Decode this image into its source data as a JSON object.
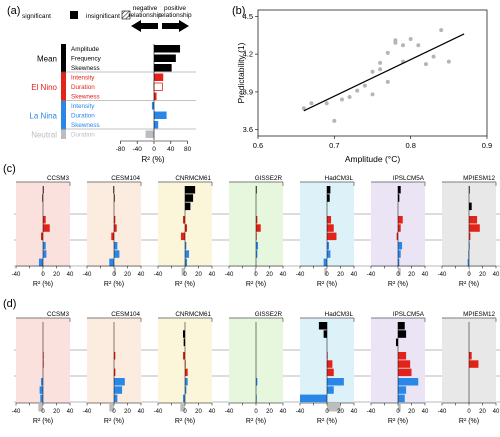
{
  "colors": {
    "mean": "#000000",
    "el_nino": "#e2231a",
    "la_nina": "#2a87e8",
    "neutral": "#bdbdbd"
  },
  "panel_a": {
    "label": "(a)",
    "legend": {
      "significant": "significant",
      "insignificant": "insignificant"
    },
    "direction": {
      "negative": "negative relationship",
      "positive": "positive relationship"
    },
    "groups": [
      {
        "name": "Mean",
        "color": "#000000",
        "metrics": [
          "Amplitude",
          "Frequency",
          "Skewness"
        ]
      },
      {
        "name": "El Nino",
        "color": "#e2231a",
        "metrics": [
          "Intensity",
          "Duration",
          "Skewness"
        ]
      },
      {
        "name": "La Nina",
        "color": "#2a87e8",
        "metrics": [
          "Intensity",
          "Duration",
          "Skewness"
        ]
      },
      {
        "name": "Neutral",
        "color": "#bdbdbd",
        "metrics": [
          "Duration"
        ]
      }
    ],
    "xlabel": "R² (%)",
    "ticks": [
      -80,
      -40,
      0,
      40,
      80
    ]
  },
  "panel_b": {
    "label": "(b)",
    "xlabel": "Amplitude (°C)",
    "ylabel": "Predictability (1)",
    "xticks": [
      0.6,
      0.7,
      0.8,
      0.9
    ],
    "yticks": [
      3.6,
      3.9,
      4.2,
      4.5
    ],
    "xlim": [
      0.6,
      0.9
    ],
    "ylim": [
      3.55,
      4.55
    ],
    "fit_line": [
      [
        0.66,
        3.75
      ],
      [
        0.87,
        4.36
      ]
    ],
    "points": [
      [
        0.66,
        3.77
      ],
      [
        0.67,
        3.81
      ],
      [
        0.69,
        3.81
      ],
      [
        0.7,
        3.67
      ],
      [
        0.71,
        3.84
      ],
      [
        0.72,
        3.86
      ],
      [
        0.73,
        3.91
      ],
      [
        0.74,
        3.95
      ],
      [
        0.75,
        3.88
      ],
      [
        0.75,
        4.06
      ],
      [
        0.76,
        4.08
      ],
      [
        0.76,
        4.13
      ],
      [
        0.77,
        3.98
      ],
      [
        0.77,
        4.21
      ],
      [
        0.78,
        4.31
      ],
      [
        0.78,
        4.29
      ],
      [
        0.79,
        4.27
      ],
      [
        0.79,
        4.14
      ],
      [
        0.8,
        4.32
      ],
      [
        0.81,
        4.27
      ],
      [
        0.82,
        4.12
      ],
      [
        0.83,
        4.18
      ],
      [
        0.84,
        4.39
      ],
      [
        0.85,
        4.14
      ]
    ]
  },
  "panel_c": {
    "label": "(c)"
  },
  "panel_d": {
    "label": "(d)"
  },
  "model_xlabel": "R² (%)",
  "model_ticks": [
    -40,
    -20,
    0,
    20,
    40
  ],
  "chart_data": [
    {
      "type": "bar",
      "panel": "(a)",
      "categories": [
        "Amplitude",
        "Frequency",
        "Skewness",
        "Intensity",
        "Duration",
        "Skewness",
        "Intensity",
        "Duration",
        "Skewness",
        "Duration"
      ],
      "values": [
        62,
        52,
        42,
        22,
        20,
        6,
        -5,
        30,
        10,
        -20
      ],
      "significant": [
        true,
        true,
        true,
        true,
        false,
        true,
        true,
        true,
        true,
        true
      ],
      "xlabel": "R² (%)",
      "xlim": [
        -100,
        100
      ]
    },
    {
      "type": "scatter",
      "panel": "(b)",
      "xlabel": "Amplitude (°C)",
      "ylabel": "Predictability (1)",
      "xlim": [
        0.6,
        0.9
      ],
      "ylim": [
        3.55,
        4.55
      ]
    },
    {
      "type": "bar",
      "panel": "(c)",
      "xlim": [
        -40,
        40
      ],
      "models": [
        {
          "name": "CCSM3",
          "bg": "#fbe1de",
          "values": [
            1,
            -1,
            0,
            4,
            10,
            -3,
            4,
            5,
            -6,
            -1
          ]
        },
        {
          "name": "CESM104",
          "bg": "#fcecdf",
          "values": [
            -1,
            1,
            0,
            2,
            4,
            -4,
            5,
            8,
            -7,
            3
          ]
        },
        {
          "name": "CNRMCM61",
          "bg": "#fbf6d9",
          "values": [
            15,
            12,
            8,
            -3,
            3,
            -6,
            2,
            6,
            3,
            -5
          ]
        },
        {
          "name": "GISSE2R",
          "bg": "#e7f7dd",
          "values": [
            1,
            0,
            0,
            2,
            7,
            1,
            3,
            2,
            0,
            -2
          ]
        },
        {
          "name": "HadCM3L",
          "bg": "#dcf1f8",
          "values": [
            5,
            4,
            0,
            6,
            10,
            14,
            3,
            5,
            -5,
            -4
          ]
        },
        {
          "name": "IPSLCM5A",
          "bg": "#ebe4f5",
          "values": [
            4,
            2,
            0,
            7,
            4,
            -2,
            6,
            4,
            2,
            4
          ]
        },
        {
          "name": "MPIESM12",
          "bg": "#e8e8e8",
          "values": [
            1,
            0,
            4,
            12,
            16,
            2,
            1,
            -1,
            -2,
            1
          ]
        }
      ]
    },
    {
      "type": "bar",
      "panel": "(d)",
      "xlim": [
        -40,
        40
      ],
      "models": [
        {
          "name": "CCSM3",
          "bg": "#fbe1de",
          "values": [
            0,
            0,
            0,
            1,
            1,
            0,
            -3,
            -5,
            -4,
            -7
          ]
        },
        {
          "name": "CESM104",
          "bg": "#fcecdf",
          "values": [
            0,
            0,
            0,
            2,
            0,
            2,
            16,
            12,
            5,
            -7
          ]
        },
        {
          "name": "CNRMCM61",
          "bg": "#fbf6d9",
          "values": [
            0,
            -3,
            -2,
            -3,
            1,
            4,
            4,
            2,
            -3,
            -7
          ]
        },
        {
          "name": "GISSE2R",
          "bg": "#e7f7dd",
          "values": [
            0,
            0,
            0,
            0,
            0,
            0,
            2,
            0,
            1,
            0
          ]
        },
        {
          "name": "HadCM3L",
          "bg": "#dcf1f8",
          "values": [
            -12,
            -5,
            0,
            1,
            8,
            10,
            25,
            10,
            -40,
            20
          ]
        },
        {
          "name": "IPSLCM5A",
          "bg": "#ebe4f5",
          "values": [
            10,
            12,
            -3,
            12,
            18,
            20,
            30,
            12,
            10,
            4
          ]
        },
        {
          "name": "MPIESM12",
          "bg": "#e8e8e8",
          "values": [
            0,
            0,
            0,
            4,
            14,
            0,
            0,
            0,
            0,
            0
          ]
        }
      ]
    }
  ]
}
